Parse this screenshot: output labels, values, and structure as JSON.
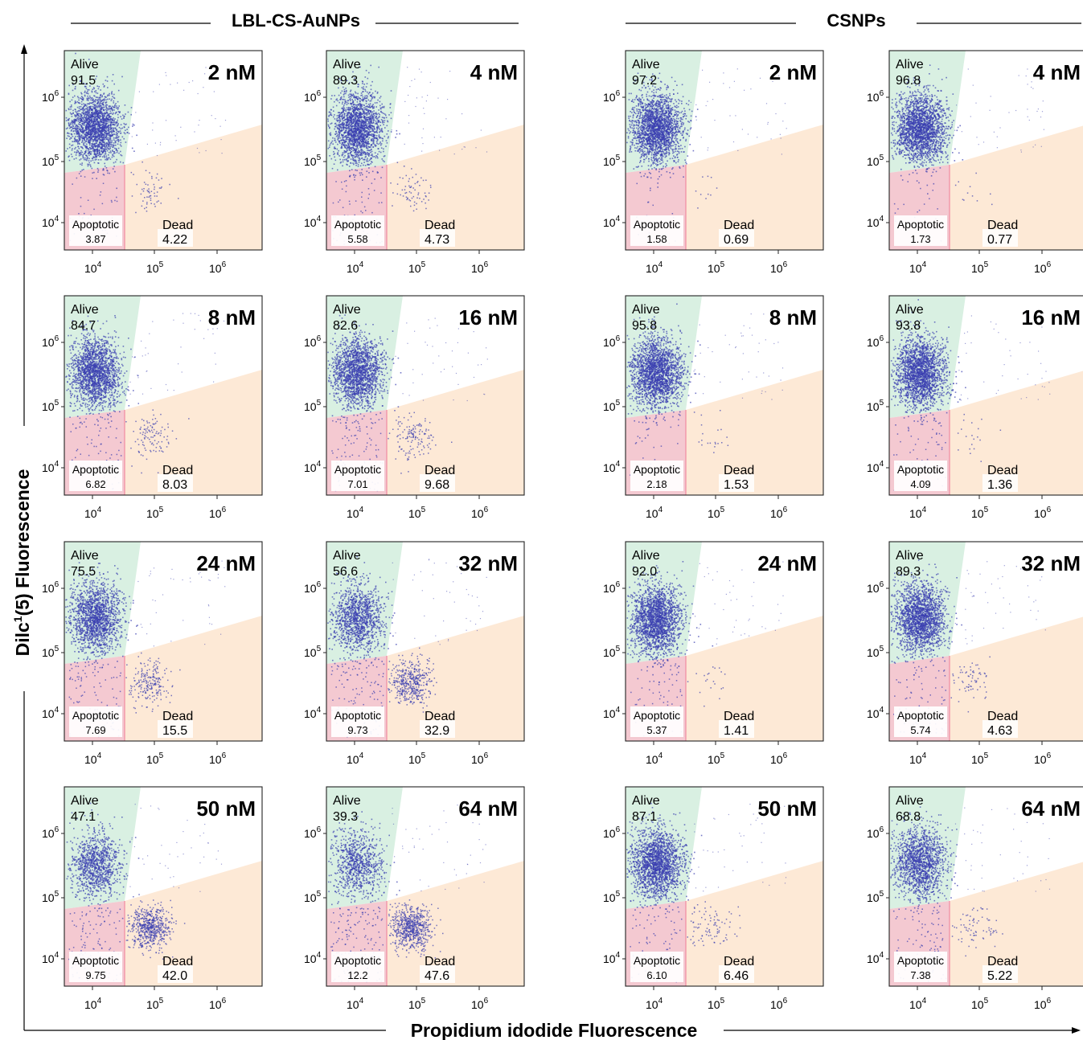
{
  "chart_data": {
    "type": "scatter",
    "layout": "small-multiples 4x4",
    "xlabel": "Propidium idodide Fluorescence",
    "ylabel_main": "Dilc",
    "ylabel_sup": "1",
    "ylabel_rest": "(5) Fluorescence",
    "x_scale": "log",
    "y_scale": "log",
    "x_ticks": [
      "10",
      "10",
      "10"
    ],
    "x_tick_exps": [
      "4",
      "5",
      "6"
    ],
    "y_ticks": [
      "10",
      "10",
      "10"
    ],
    "y_tick_exps": [
      "6",
      "5",
      "4"
    ],
    "gate_labels": {
      "alive": "Alive",
      "apoptotic": "Apoptotic",
      "dead": "Dead"
    },
    "colors": {
      "alive_gate": "#d9f0e2",
      "apoptotic_gate": "#f4c9d1",
      "dead_gate": "#fde9d6",
      "dots": "#3b3fb0",
      "gate_border": "#f08aa0"
    },
    "groups": [
      {
        "name": "LBL-CS-AuNPs",
        "panels": [
          {
            "concentration": "2 nM",
            "alive": "91.5",
            "apoptotic": "3.87",
            "dead": "4.22"
          },
          {
            "concentration": "4 nM",
            "alive": "89.3",
            "apoptotic": "5.58",
            "dead": "4.73"
          },
          {
            "concentration": "8 nM",
            "alive": "84.7",
            "apoptotic": "6.82",
            "dead": "8.03"
          },
          {
            "concentration": "16 nM",
            "alive": "82.6",
            "apoptotic": "7.01",
            "dead": "9.68"
          },
          {
            "concentration": "24 nM",
            "alive": "75.5",
            "apoptotic": "7.69",
            "dead": "15.5"
          },
          {
            "concentration": "32 nM",
            "alive": "56.6",
            "apoptotic": "9.73",
            "dead": "32.9"
          },
          {
            "concentration": "50 nM",
            "alive": "47.1",
            "apoptotic": "9.75",
            "dead": "42.0"
          },
          {
            "concentration": "64 nM",
            "alive": "39.3",
            "apoptotic": "12.2",
            "dead": "47.6"
          }
        ]
      },
      {
        "name": "CSNPs",
        "panels": [
          {
            "concentration": "2 nM",
            "alive": "97.2",
            "apoptotic": "1.58",
            "dead": "0.69"
          },
          {
            "concentration": "4 nM",
            "alive": "96.8",
            "apoptotic": "1.73",
            "dead": "0.77"
          },
          {
            "concentration": "8 nM",
            "alive": "95.8",
            "apoptotic": "2.18",
            "dead": "1.53"
          },
          {
            "concentration": "16 nM",
            "alive": "93.8",
            "apoptotic": "4.09",
            "dead": "1.36"
          },
          {
            "concentration": "24 nM",
            "alive": "92.0",
            "apoptotic": "5.37",
            "dead": "1.41"
          },
          {
            "concentration": "32 nM",
            "alive": "89.3",
            "apoptotic": "5.74",
            "dead": "4.63"
          },
          {
            "concentration": "50 nM",
            "alive": "87.1",
            "apoptotic": "6.10",
            "dead": "6.46"
          },
          {
            "concentration": "64 nM",
            "alive": "68.8",
            "apoptotic": "7.38",
            "dead": "5.22"
          }
        ]
      }
    ]
  }
}
